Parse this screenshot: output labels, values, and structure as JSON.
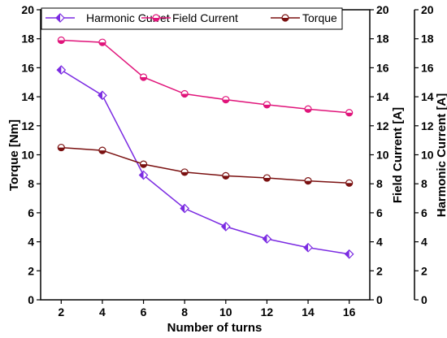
{
  "chart_data": {
    "type": "line",
    "xlabel": "Number of turns",
    "ylabel_left": "Torque [Nm]",
    "ylabel_right1": "Field Current [A]",
    "ylabel_right2": "Harmonic Current [A]",
    "x": [
      2,
      4,
      6,
      8,
      10,
      12,
      14,
      16
    ],
    "xlim": [
      1,
      17
    ],
    "ylim": [
      0,
      20
    ],
    "x_ticks": [
      2,
      4,
      6,
      8,
      10,
      12,
      14,
      16
    ],
    "y_ticks": [
      0,
      2,
      4,
      6,
      8,
      10,
      12,
      14,
      16,
      18,
      20
    ],
    "legend_placement": "top",
    "grid": false,
    "series": [
      {
        "name": "Harmonic Curret",
        "color": "#7B2BE2",
        "marker": "diamond",
        "axis": "right2",
        "values": [
          15.85,
          14.1,
          8.6,
          6.3,
          5.05,
          4.2,
          3.6,
          3.15
        ]
      },
      {
        "name": "Field Current",
        "color": "#E0147A",
        "marker": "circle",
        "axis": "right1",
        "values": [
          17.9,
          17.75,
          15.35,
          14.2,
          13.8,
          13.45,
          13.15,
          12.9
        ]
      },
      {
        "name": "Torque",
        "color": "#7A1010",
        "marker": "circle",
        "axis": "left",
        "values": [
          10.5,
          10.3,
          9.35,
          8.8,
          8.55,
          8.4,
          8.2,
          8.05
        ]
      }
    ]
  }
}
